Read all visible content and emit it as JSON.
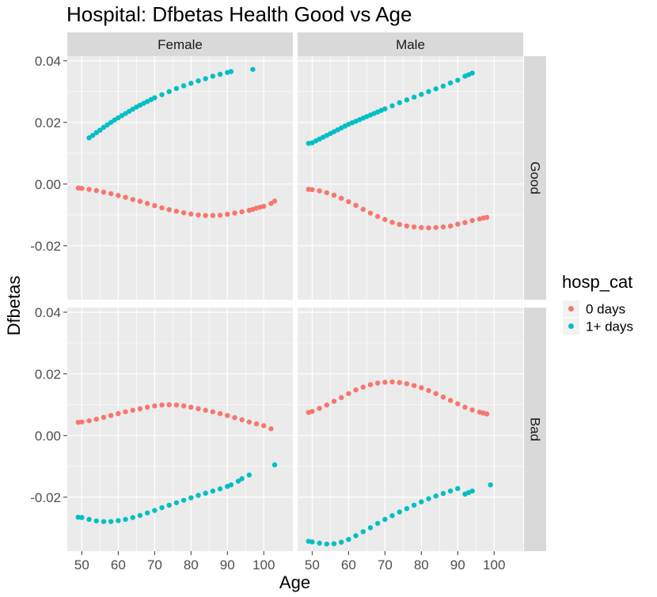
{
  "chart_data": {
    "type": "scatter",
    "title": "Hospital: Dfbetas Health Good vs Age",
    "xlabel": "Age",
    "ylabel": "Dfbetas",
    "xlim": [
      46,
      108
    ],
    "ylim": [
      -0.0375,
      0.0415
    ],
    "x_ticks": [
      50,
      60,
      70,
      80,
      90,
      100
    ],
    "y_ticks": [
      -0.02,
      0.0,
      0.02,
      0.04
    ],
    "y_tick_labels": [
      "-0.02",
      "0.00",
      "0.02",
      "0.04"
    ],
    "grid": true,
    "facet_cols": [
      "Female",
      "Male"
    ],
    "facet_rows": [
      "Good",
      "Bad"
    ],
    "legend": {
      "title": "hosp_cat",
      "position": "right",
      "entries": [
        {
          "label": "0 days",
          "color": "#F8766D"
        },
        {
          "label": "1+ days",
          "color": "#00BFC4"
        }
      ]
    },
    "panels": [
      {
        "col": "Female",
        "row": "Good",
        "series": [
          {
            "name": "0 days",
            "color": "#F8766D",
            "x": [
              49,
              50,
              52,
              54,
              56,
              58,
              60,
              62,
              64,
              66,
              68,
              70,
              72,
              74,
              76,
              78,
              80,
              82,
              84,
              86,
              88,
              90,
              92,
              94,
              96,
              97,
              98,
              99,
              100,
              102,
              103
            ],
            "y": [
              -0.0013,
              -0.0014,
              -0.0017,
              -0.0021,
              -0.0026,
              -0.0031,
              -0.0037,
              -0.0043,
              -0.005,
              -0.0056,
              -0.0063,
              -0.007,
              -0.0077,
              -0.0083,
              -0.0088,
              -0.0093,
              -0.0097,
              -0.01,
              -0.0102,
              -0.0102,
              -0.0101,
              -0.0098,
              -0.0094,
              -0.009,
              -0.0085,
              -0.0082,
              -0.0078,
              -0.0075,
              -0.0072,
              -0.0063,
              -0.0055
            ]
          },
          {
            "name": "1+ days",
            "color": "#00BFC4",
            "x": [
              52,
              53,
              54,
              55,
              56,
              57,
              58,
              59,
              60,
              61,
              62,
              63,
              64,
              65,
              66,
              67,
              68,
              69,
              70,
              72,
              74,
              76,
              78,
              80,
              82,
              84,
              86,
              88,
              90,
              91,
              97
            ],
            "y": [
              0.015,
              0.0158,
              0.0167,
              0.0175,
              0.0184,
              0.0192,
              0.02,
              0.0208,
              0.0215,
              0.0222,
              0.0229,
              0.0236,
              0.0243,
              0.025,
              0.0256,
              0.0262,
              0.0268,
              0.0274,
              0.028,
              0.029,
              0.03,
              0.031,
              0.0319,
              0.0327,
              0.0335,
              0.0342,
              0.035,
              0.0356,
              0.0362,
              0.0365,
              0.0372
            ]
          }
        ]
      },
      {
        "col": "Male",
        "row": "Good",
        "series": [
          {
            "name": "0 days",
            "color": "#F8766D",
            "x": [
              49,
              50,
              52,
              54,
              56,
              58,
              60,
              62,
              64,
              66,
              68,
              70,
              72,
              74,
              76,
              78,
              80,
              82,
              84,
              86,
              88,
              90,
              92,
              94,
              96,
              97,
              98
            ],
            "y": [
              -0.0017,
              -0.0018,
              -0.0022,
              -0.0028,
              -0.0036,
              -0.0046,
              -0.0057,
              -0.0069,
              -0.0082,
              -0.0094,
              -0.0105,
              -0.0115,
              -0.0124,
              -0.0131,
              -0.0136,
              -0.0139,
              -0.0141,
              -0.0142,
              -0.0141,
              -0.0139,
              -0.0136,
              -0.013,
              -0.0125,
              -0.0118,
              -0.0113,
              -0.011,
              -0.0108
            ]
          },
          {
            "name": "1+ days",
            "color": "#00BFC4",
            "x": [
              49,
              50,
              51,
              52,
              53,
              54,
              55,
              56,
              57,
              58,
              59,
              60,
              61,
              62,
              63,
              64,
              65,
              66,
              67,
              68,
              69,
              70,
              72,
              74,
              76,
              78,
              80,
              82,
              84,
              86,
              88,
              90,
              92,
              93,
              94
            ],
            "y": [
              0.0132,
              0.0134,
              0.014,
              0.0146,
              0.0152,
              0.0158,
              0.0164,
              0.017,
              0.0176,
              0.0182,
              0.0188,
              0.0194,
              0.0199,
              0.0204,
              0.0209,
              0.0214,
              0.0219,
              0.0224,
              0.0229,
              0.0234,
              0.0239,
              0.0244,
              0.0254,
              0.0264,
              0.0273,
              0.0282,
              0.0291,
              0.03,
              0.0309,
              0.0318,
              0.0328,
              0.0337,
              0.035,
              0.0355,
              0.036
            ]
          }
        ]
      },
      {
        "col": "Female",
        "row": "Bad",
        "series": [
          {
            "name": "0 days",
            "color": "#F8766D",
            "x": [
              49,
              50,
              52,
              54,
              56,
              58,
              60,
              62,
              64,
              66,
              68,
              70,
              72,
              74,
              76,
              78,
              80,
              82,
              84,
              86,
              88,
              90,
              92,
              94,
              96,
              98,
              100,
              102
            ],
            "y": [
              0.0043,
              0.0044,
              0.0048,
              0.0053,
              0.0059,
              0.0065,
              0.0071,
              0.0077,
              0.0082,
              0.0087,
              0.0092,
              0.0096,
              0.0099,
              0.01,
              0.0099,
              0.0096,
              0.0092,
              0.0087,
              0.0082,
              0.0077,
              0.0071,
              0.0065,
              0.0058,
              0.0051,
              0.0044,
              0.0038,
              0.0032,
              0.0022
            ]
          },
          {
            "name": "1+ days",
            "color": "#00BFC4",
            "x": [
              49,
              50,
              52,
              54,
              56,
              58,
              60,
              62,
              64,
              66,
              68,
              70,
              72,
              74,
              76,
              78,
              80,
              82,
              84,
              86,
              88,
              90,
              91,
              93,
              94,
              96,
              103
            ],
            "y": [
              -0.0265,
              -0.0266,
              -0.0272,
              -0.0277,
              -0.0279,
              -0.0279,
              -0.0276,
              -0.0272,
              -0.0266,
              -0.0259,
              -0.0251,
              -0.0243,
              -0.0234,
              -0.0226,
              -0.0218,
              -0.021,
              -0.0202,
              -0.0194,
              -0.0187,
              -0.018,
              -0.0173,
              -0.0165,
              -0.016,
              -0.0148,
              -0.014,
              -0.0128,
              -0.0095
            ]
          }
        ]
      },
      {
        "col": "Male",
        "row": "Bad",
        "series": [
          {
            "name": "0 days",
            "color": "#F8766D",
            "x": [
              49,
              50,
              52,
              54,
              56,
              58,
              60,
              62,
              64,
              66,
              68,
              70,
              72,
              74,
              76,
              78,
              80,
              82,
              84,
              86,
              88,
              90,
              92,
              94,
              96,
              97,
              98
            ],
            "y": [
              0.0075,
              0.0078,
              0.0088,
              0.0099,
              0.0111,
              0.0123,
              0.0136,
              0.0148,
              0.0157,
              0.0165,
              0.017,
              0.0173,
              0.0174,
              0.0172,
              0.0168,
              0.0162,
              0.0155,
              0.0146,
              0.0136,
              0.0125,
              0.0114,
              0.0103,
              0.0092,
              0.0083,
              0.0076,
              0.0073,
              0.007
            ]
          },
          {
            "name": "1+ days",
            "color": "#00BFC4",
            "x": [
              49,
              50,
              52,
              54,
              56,
              58,
              60,
              62,
              64,
              66,
              68,
              70,
              72,
              74,
              76,
              78,
              80,
              82,
              84,
              86,
              88,
              90,
              92,
              93,
              94,
              99
            ],
            "y": [
              -0.0343,
              -0.0345,
              -0.0349,
              -0.0352,
              -0.0351,
              -0.0346,
              -0.0337,
              -0.0325,
              -0.0312,
              -0.0299,
              -0.0285,
              -0.0272,
              -0.026,
              -0.0248,
              -0.0237,
              -0.0226,
              -0.0215,
              -0.0205,
              -0.0196,
              -0.0188,
              -0.018,
              -0.0172,
              -0.019,
              -0.0185,
              -0.018,
              -0.016
            ]
          }
        ]
      }
    ]
  }
}
